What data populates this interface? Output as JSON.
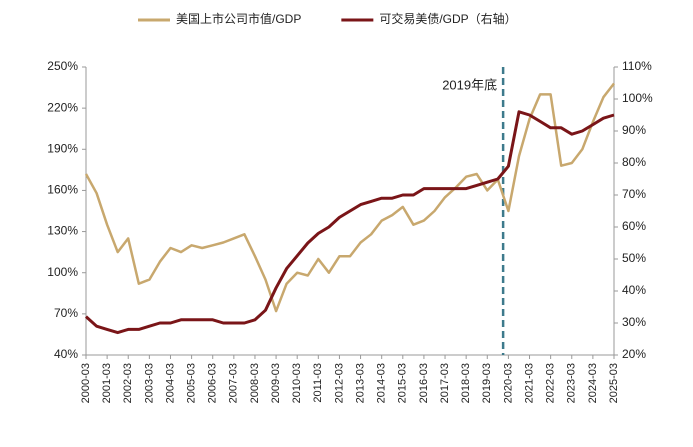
{
  "chart_data": {
    "type": "line",
    "annotation": "2019年底",
    "categories": [
      "2000-03",
      null,
      "2001-03",
      null,
      "2002-03",
      null,
      "2003-03",
      null,
      "2004-03",
      null,
      "2005-03",
      null,
      "2006-03",
      null,
      "2007-03",
      null,
      "2008-03",
      null,
      "2009-03",
      null,
      "2010-03",
      null,
      "2011-03",
      null,
      "2012-03",
      null,
      "2013-03",
      null,
      "2014-03",
      null,
      "2015-03",
      null,
      "2016-03",
      null,
      "2017-03",
      null,
      "2018-03",
      null,
      "2019-03",
      null,
      "2020-03",
      null,
      "2021-03",
      null,
      "2022-03",
      null,
      "2023-03",
      null,
      "2024-03",
      null,
      "2025-03"
    ],
    "series": [
      {
        "name": "美国上市公司市值/GDP",
        "color": "#c8a86e",
        "axis": "y",
        "values": [
          172,
          158,
          135,
          115,
          125,
          92,
          95,
          108,
          118,
          115,
          120,
          118,
          120,
          122,
          125,
          128,
          112,
          95,
          72,
          92,
          100,
          98,
          110,
          100,
          112,
          112,
          122,
          128,
          138,
          142,
          148,
          135,
          138,
          145,
          155,
          162,
          170,
          172,
          160,
          168,
          145,
          185,
          212,
          230,
          230,
          178,
          180,
          190,
          210,
          228,
          238
        ]
      },
      {
        "name": "可交易美债/GDP（右轴）",
        "color": "#7a1518",
        "axis": "y2",
        "values": [
          32,
          29,
          28,
          27,
          28,
          28,
          29,
          30,
          30,
          31,
          31,
          31,
          31,
          30,
          30,
          30,
          31,
          34,
          41,
          47,
          51,
          55,
          58,
          60,
          63,
          65,
          67,
          68,
          69,
          69,
          70,
          70,
          72,
          72,
          72,
          72,
          72,
          73,
          74,
          75,
          79,
          96,
          95,
          93,
          91,
          91,
          89,
          90,
          92,
          94,
          95
        ]
      }
    ],
    "ylim": [
      40,
      250
    ],
    "yticks": [
      {
        "value": 40,
        "label": "40%"
      },
      {
        "value": 70,
        "label": "70%"
      },
      {
        "value": 100,
        "label": "100%"
      },
      {
        "value": 130,
        "label": "130%"
      },
      {
        "value": 160,
        "label": "160%"
      },
      {
        "value": 190,
        "label": "190%"
      },
      {
        "value": 220,
        "label": "220%"
      },
      {
        "value": 250,
        "label": "250%"
      }
    ],
    "y2lim": [
      20,
      110
    ],
    "y2ticks": [
      {
        "value": 20,
        "label": "20%"
      },
      {
        "value": 30,
        "label": "30%"
      },
      {
        "value": 40,
        "label": "40%"
      },
      {
        "value": 50,
        "label": "50%"
      },
      {
        "value": 60,
        "label": "60%"
      },
      {
        "value": 70,
        "label": "70%"
      },
      {
        "value": 80,
        "label": "80%"
      },
      {
        "value": 90,
        "label": "90%"
      },
      {
        "value": 100,
        "label": "100%"
      },
      {
        "value": 110,
        "label": "110%"
      }
    ]
  }
}
